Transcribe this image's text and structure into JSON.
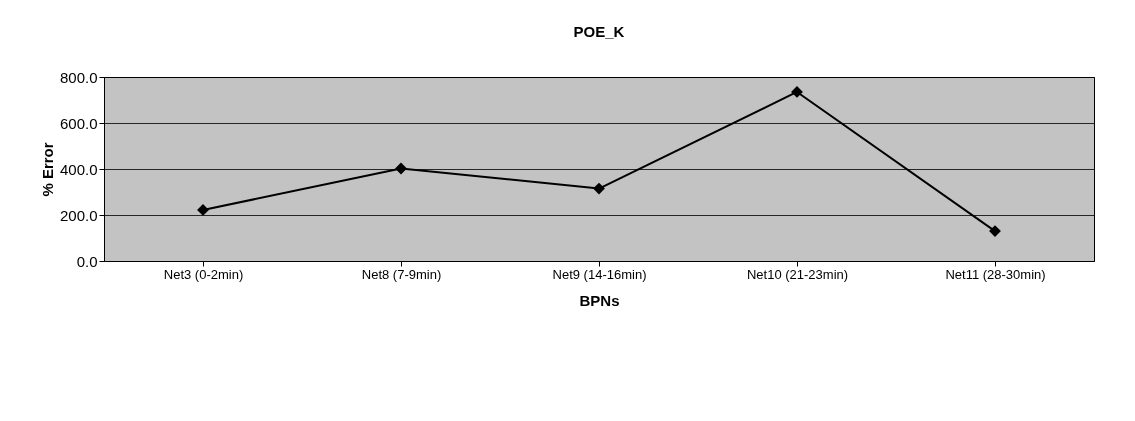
{
  "chart_data": {
    "type": "line",
    "title": "POE_K",
    "xlabel": "BPNs",
    "ylabel": "% Error",
    "categories": [
      "Net3 (0-2min)",
      "Net8 (7-9min)",
      "Net9 (14-16min)",
      "Net10 (21-23min)",
      "Net11 (28-30min)"
    ],
    "series": [
      {
        "color": "#000000",
        "values": [
          222,
          402,
          315,
          735,
          130
        ]
      }
    ],
    "ylim": [
      0,
      800
    ],
    "yticks": [
      {
        "value": 0,
        "label": "0.0"
      },
      {
        "value": 200,
        "label": "200.0"
      },
      {
        "value": 400,
        "label": "400.0"
      },
      {
        "value": 600,
        "label": "600.0"
      },
      {
        "value": 800,
        "label": "800.0"
      }
    ],
    "grid": "y",
    "marker": "diamond",
    "line_style": "solid",
    "legend": false
  }
}
